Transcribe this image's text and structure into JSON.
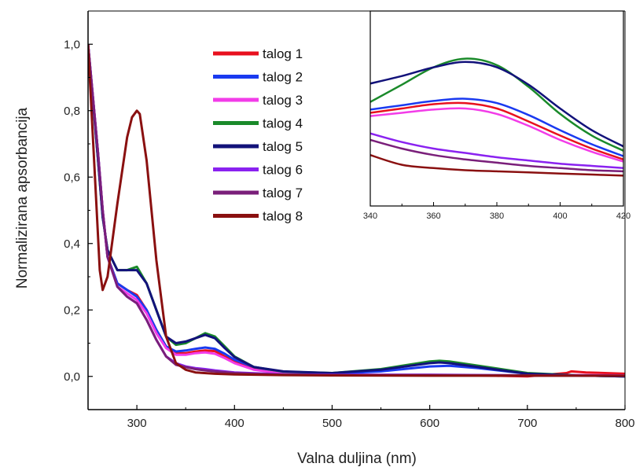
{
  "chart_data": [
    {
      "type": "line",
      "title": "",
      "xlabel": "Valna duljina (nm)",
      "ylabel": "Normalizirana apsorbancija",
      "xlim": [
        250,
        800
      ],
      "ylim": [
        -0.1,
        1.1
      ],
      "xticks": [
        300,
        400,
        500,
        600,
        700,
        800
      ],
      "yticks": [
        0.0,
        0.2,
        0.4,
        0.6,
        0.8,
        1.0
      ],
      "xtick_labels": [
        "300",
        "400",
        "500",
        "600",
        "700",
        "800"
      ],
      "ytick_labels": [
        "0,0",
        "0,2",
        "0,4",
        "0,6",
        "0,8",
        "1,0"
      ],
      "grid": false,
      "legend_position": "top-center",
      "series": [
        {
          "name": "talog 1",
          "color": "#e8101e",
          "x": [
            250,
            260,
            265,
            270,
            280,
            290,
            300,
            310,
            320,
            330,
            340,
            350,
            360,
            370,
            380,
            390,
            400,
            420,
            450,
            500,
            550,
            600,
            620,
            650,
            700,
            740,
            745,
            760,
            800
          ],
          "y": [
            1.0,
            0.68,
            0.5,
            0.36,
            0.28,
            0.26,
            0.245,
            0.2,
            0.14,
            0.09,
            0.07,
            0.07,
            0.075,
            0.078,
            0.076,
            0.06,
            0.045,
            0.025,
            0.012,
            0.005,
            0.003,
            0.003,
            0.004,
            0.003,
            0.0,
            0.01,
            0.015,
            0.012,
            0.008
          ]
        },
        {
          "name": "talog 2",
          "color": "#1a3af0",
          "x": [
            250,
            260,
            265,
            270,
            280,
            290,
            300,
            310,
            320,
            330,
            340,
            350,
            360,
            370,
            380,
            390,
            400,
            420,
            450,
            500,
            550,
            600,
            620,
            650,
            700,
            750,
            800
          ],
          "y": [
            1.0,
            0.68,
            0.5,
            0.36,
            0.28,
            0.26,
            0.24,
            0.2,
            0.14,
            0.09,
            0.075,
            0.078,
            0.083,
            0.087,
            0.083,
            0.068,
            0.05,
            0.028,
            0.013,
            0.008,
            0.015,
            0.03,
            0.032,
            0.025,
            0.008,
            0.003,
            0.0
          ]
        },
        {
          "name": "talog 3",
          "color": "#f23ce8",
          "x": [
            250,
            260,
            265,
            270,
            280,
            290,
            300,
            310,
            320,
            330,
            340,
            350,
            360,
            370,
            380,
            390,
            400,
            420,
            450,
            500,
            550,
            600,
            650,
            700,
            750,
            800
          ],
          "y": [
            1.0,
            0.68,
            0.5,
            0.36,
            0.27,
            0.25,
            0.23,
            0.19,
            0.13,
            0.085,
            0.065,
            0.065,
            0.07,
            0.072,
            0.068,
            0.055,
            0.04,
            0.02,
            0.008,
            0.004,
            0.003,
            0.003,
            0.003,
            0.002,
            0.004,
            0.003
          ]
        },
        {
          "name": "talog 4",
          "color": "#1a8a2a",
          "x": [
            250,
            260,
            265,
            270,
            280,
            290,
            300,
            310,
            320,
            330,
            340,
            350,
            360,
            370,
            380,
            390,
            400,
            420,
            450,
            500,
            550,
            600,
            610,
            620,
            650,
            700,
            750,
            800
          ],
          "y": [
            1.0,
            0.66,
            0.48,
            0.38,
            0.32,
            0.32,
            0.33,
            0.28,
            0.2,
            0.12,
            0.095,
            0.1,
            0.115,
            0.13,
            0.12,
            0.09,
            0.06,
            0.028,
            0.014,
            0.01,
            0.022,
            0.045,
            0.047,
            0.045,
            0.032,
            0.01,
            0.003,
            0.0
          ]
        },
        {
          "name": "talog 5",
          "color": "#12127a",
          "x": [
            250,
            260,
            265,
            270,
            280,
            290,
            300,
            310,
            320,
            330,
            340,
            350,
            360,
            370,
            380,
            390,
            400,
            420,
            450,
            500,
            550,
            600,
            610,
            620,
            650,
            700,
            750,
            800
          ],
          "y": [
            1.0,
            0.66,
            0.48,
            0.38,
            0.32,
            0.32,
            0.32,
            0.28,
            0.2,
            0.12,
            0.1,
            0.105,
            0.115,
            0.125,
            0.115,
            0.085,
            0.058,
            0.028,
            0.015,
            0.01,
            0.02,
            0.04,
            0.042,
            0.04,
            0.028,
            0.008,
            0.003,
            0.0
          ]
        },
        {
          "name": "talog 6",
          "color": "#8a22f0",
          "x": [
            250,
            260,
            265,
            270,
            280,
            290,
            300,
            310,
            320,
            330,
            340,
            350,
            360,
            370,
            380,
            400,
            450,
            500,
            600,
            700,
            800
          ],
          "y": [
            1.0,
            0.68,
            0.5,
            0.36,
            0.27,
            0.24,
            0.22,
            0.17,
            0.11,
            0.06,
            0.04,
            0.03,
            0.025,
            0.022,
            0.018,
            0.012,
            0.006,
            0.005,
            0.005,
            0.003,
            0.002
          ]
        },
        {
          "name": "talog 7",
          "color": "#7a1f7a",
          "x": [
            250,
            260,
            265,
            270,
            280,
            290,
            300,
            310,
            320,
            330,
            340,
            350,
            360,
            370,
            380,
            400,
            450,
            500,
            600,
            700,
            800
          ],
          "y": [
            1.0,
            0.68,
            0.5,
            0.36,
            0.27,
            0.24,
            0.22,
            0.17,
            0.11,
            0.06,
            0.035,
            0.028,
            0.022,
            0.018,
            0.015,
            0.01,
            0.005,
            0.004,
            0.004,
            0.003,
            0.002
          ]
        },
        {
          "name": "talog 8",
          "color": "#8a1010",
          "x": [
            250,
            258,
            262,
            265,
            270,
            280,
            290,
            295,
            300,
            303,
            310,
            320,
            330,
            340,
            350,
            360,
            380,
            400,
            450,
            500,
            600,
            700,
            800
          ],
          "y": [
            1.0,
            0.55,
            0.32,
            0.26,
            0.3,
            0.52,
            0.72,
            0.78,
            0.8,
            0.79,
            0.65,
            0.35,
            0.12,
            0.04,
            0.02,
            0.012,
            0.008,
            0.006,
            0.004,
            0.003,
            0.002,
            0.002,
            0.002
          ]
        }
      ]
    },
    {
      "type": "line",
      "title": "",
      "xlabel": "",
      "ylabel": "",
      "xlim": [
        340,
        420
      ],
      "xticks": [
        340,
        360,
        380,
        400,
        420
      ],
      "xtick_labels": [
        "340",
        "360",
        "380",
        "400",
        "420"
      ],
      "ytick_labels": [],
      "ylim": [
        -0.01,
        0.17
      ],
      "grid": false,
      "series": [
        {
          "name": "talog 1",
          "color": "#e8101e",
          "x": [
            340,
            350,
            360,
            370,
            380,
            390,
            400,
            410,
            420
          ],
          "y": [
            0.076,
            0.08,
            0.084,
            0.085,
            0.08,
            0.068,
            0.055,
            0.043,
            0.033
          ]
        },
        {
          "name": "talog 2",
          "color": "#1a3af0",
          "x": [
            340,
            350,
            360,
            370,
            380,
            390,
            400,
            410,
            420
          ],
          "y": [
            0.079,
            0.083,
            0.087,
            0.089,
            0.085,
            0.074,
            0.06,
            0.047,
            0.036
          ]
        },
        {
          "name": "talog 3",
          "color": "#f23ce8",
          "x": [
            340,
            350,
            360,
            370,
            380,
            390,
            400,
            410,
            420
          ],
          "y": [
            0.073,
            0.076,
            0.079,
            0.08,
            0.075,
            0.064,
            0.051,
            0.04,
            0.031
          ]
        },
        {
          "name": "talog 4",
          "color": "#1a8a2a",
          "x": [
            340,
            350,
            360,
            370,
            380,
            390,
            400,
            410,
            420
          ],
          "y": [
            0.086,
            0.102,
            0.118,
            0.126,
            0.12,
            0.1,
            0.075,
            0.055,
            0.041
          ]
        },
        {
          "name": "talog 5",
          "color": "#12127a",
          "x": [
            340,
            350,
            360,
            370,
            380,
            390,
            400,
            410,
            420
          ],
          "y": [
            0.103,
            0.11,
            0.118,
            0.123,
            0.118,
            0.102,
            0.08,
            0.06,
            0.045
          ]
        },
        {
          "name": "talog 6",
          "color": "#8a22f0",
          "x": [
            340,
            350,
            360,
            370,
            380,
            390,
            400,
            410,
            420
          ],
          "y": [
            0.057,
            0.049,
            0.043,
            0.039,
            0.035,
            0.032,
            0.029,
            0.027,
            0.025
          ]
        },
        {
          "name": "talog 7",
          "color": "#7a1f7a",
          "x": [
            340,
            350,
            360,
            370,
            380,
            390,
            400,
            410,
            420
          ],
          "y": [
            0.051,
            0.043,
            0.037,
            0.033,
            0.03,
            0.027,
            0.025,
            0.023,
            0.022
          ]
        },
        {
          "name": "talog 8",
          "color": "#8a1010",
          "x": [
            340,
            350,
            360,
            370,
            380,
            390,
            400,
            410,
            420
          ],
          "y": [
            0.037,
            0.028,
            0.025,
            0.023,
            0.022,
            0.021,
            0.02,
            0.019,
            0.018
          ]
        }
      ]
    }
  ]
}
